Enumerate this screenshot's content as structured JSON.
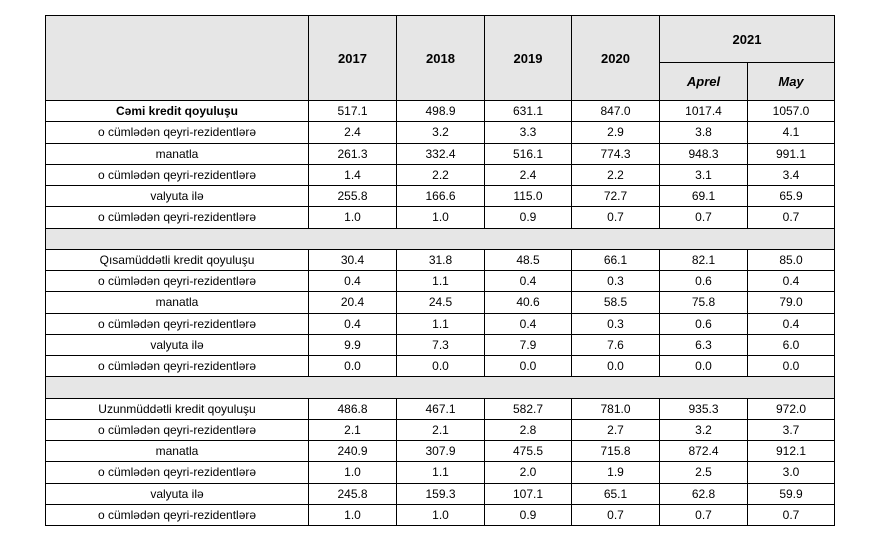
{
  "table": {
    "header": {
      "years": [
        "2017",
        "2018",
        "2019",
        "2020"
      ],
      "group": "2021",
      "months": [
        "Aprel",
        "May"
      ]
    },
    "sections": [
      {
        "rows": [
          {
            "label": "Cəmi kredit qoyuluşu",
            "values": [
              "517.1",
              "498.9",
              "631.1",
              "847.0",
              "1017.4",
              "1057.0"
            ]
          },
          {
            "label": "o cümlədən qeyri-rezidentlərə",
            "values": [
              "2.4",
              "3.2",
              "3.3",
              "2.9",
              "3.8",
              "4.1"
            ]
          },
          {
            "label": "manatla",
            "values": [
              "261.3",
              "332.4",
              "516.1",
              "774.3",
              "948.3",
              "991.1"
            ]
          },
          {
            "label": "o cümlədən qeyri-rezidentlərə",
            "values": [
              "1.4",
              "2.2",
              "2.4",
              "2.2",
              "3.1",
              "3.4"
            ]
          },
          {
            "label": "valyuta ilə",
            "values": [
              "255.8",
              "166.6",
              "115.0",
              "72.7",
              "69.1",
              "65.9"
            ]
          },
          {
            "label": "o cümlədən qeyri-rezidentlərə",
            "values": [
              "1.0",
              "1.0",
              "0.9",
              "0.7",
              "0.7",
              "0.7"
            ]
          }
        ]
      },
      {
        "rows": [
          {
            "label": "Qısamüddətli kredit qoyuluşu",
            "values": [
              "30.4",
              "31.8",
              "48.5",
              "66.1",
              "82.1",
              "85.0"
            ]
          },
          {
            "label": "o cümlədən qeyri-rezidentlərə",
            "values": [
              "0.4",
              "1.1",
              "0.4",
              "0.3",
              "0.6",
              "0.4"
            ]
          },
          {
            "label": "manatla",
            "values": [
              "20.4",
              "24.5",
              "40.6",
              "58.5",
              "75.8",
              "79.0"
            ]
          },
          {
            "label": "o cümlədən qeyri-rezidentlərə",
            "values": [
              "0.4",
              "1.1",
              "0.4",
              "0.3",
              "0.6",
              "0.4"
            ]
          },
          {
            "label": "valyuta ilə",
            "values": [
              "9.9",
              "7.3",
              "7.9",
              "7.6",
              "6.3",
              "6.0"
            ]
          },
          {
            "label": "o cümlədən qeyri-rezidentlərə",
            "values": [
              "0.0",
              "0.0",
              "0.0",
              "0.0",
              "0.0",
              "0.0"
            ]
          }
        ]
      },
      {
        "rows": [
          {
            "label": "Uzunmüddətli kredit qoyuluşu",
            "values": [
              "486.8",
              "467.1",
              "582.7",
              "781.0",
              "935.3",
              "972.0"
            ]
          },
          {
            "label": "o cümlədən qeyri-rezidentlərə",
            "values": [
              "2.1",
              "2.1",
              "2.8",
              "2.7",
              "3.2",
              "3.7"
            ]
          },
          {
            "label": "manatla",
            "values": [
              "240.9",
              "307.9",
              "475.5",
              "715.8",
              "872.4",
              "912.1"
            ]
          },
          {
            "label": "o cümlədən qeyri-rezidentlərə",
            "values": [
              "1.0",
              "1.1",
              "2.0",
              "1.9",
              "2.5",
              "3.0"
            ]
          },
          {
            "label": "valyuta ilə",
            "values": [
              "245.8",
              "159.3",
              "107.1",
              "65.1",
              "62.8",
              "59.9"
            ]
          },
          {
            "label": "o cümlədən qeyri-rezidentlərə",
            "values": [
              "1.0",
              "1.0",
              "0.9",
              "0.7",
              "0.7",
              "0.7"
            ]
          }
        ]
      }
    ]
  }
}
